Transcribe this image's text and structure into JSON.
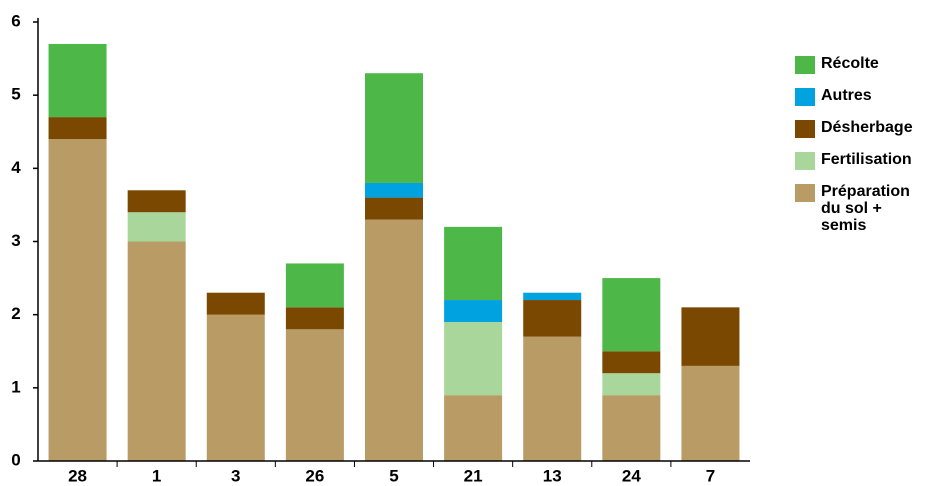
{
  "chart_data": {
    "type": "stacked_bar",
    "categories": [
      "28",
      "1",
      "3",
      "26",
      "5",
      "21",
      "13",
      "24",
      "7"
    ],
    "series": [
      {
        "name": "Préparation du sol + semis",
        "color": "#b99b65",
        "values": [
          4.4,
          3.0,
          2.0,
          1.8,
          3.3,
          0.9,
          1.7,
          0.9,
          1.3
        ]
      },
      {
        "name": "Fertilisation",
        "color": "#a9d79b",
        "values": [
          0,
          0.4,
          0,
          0,
          0,
          1.0,
          0,
          0.3,
          0
        ]
      },
      {
        "name": "Désherbage",
        "color": "#7a4800",
        "values": [
          0.3,
          0.3,
          0.3,
          0.3,
          0.3,
          0,
          0.5,
          0.3,
          0.8
        ]
      },
      {
        "name": "Autres",
        "color": "#00a3e0",
        "values": [
          0,
          0,
          0,
          0,
          0.2,
          0.3,
          0.1,
          0,
          0
        ]
      },
      {
        "name": "Récolte",
        "color": "#4db848",
        "values": [
          1.0,
          0,
          0,
          0.6,
          1.5,
          1.0,
          0,
          1.0,
          0
        ]
      }
    ],
    "ylim": [
      0,
      6
    ],
    "yticks": [
      0,
      1,
      2,
      3,
      4,
      5,
      6
    ]
  }
}
